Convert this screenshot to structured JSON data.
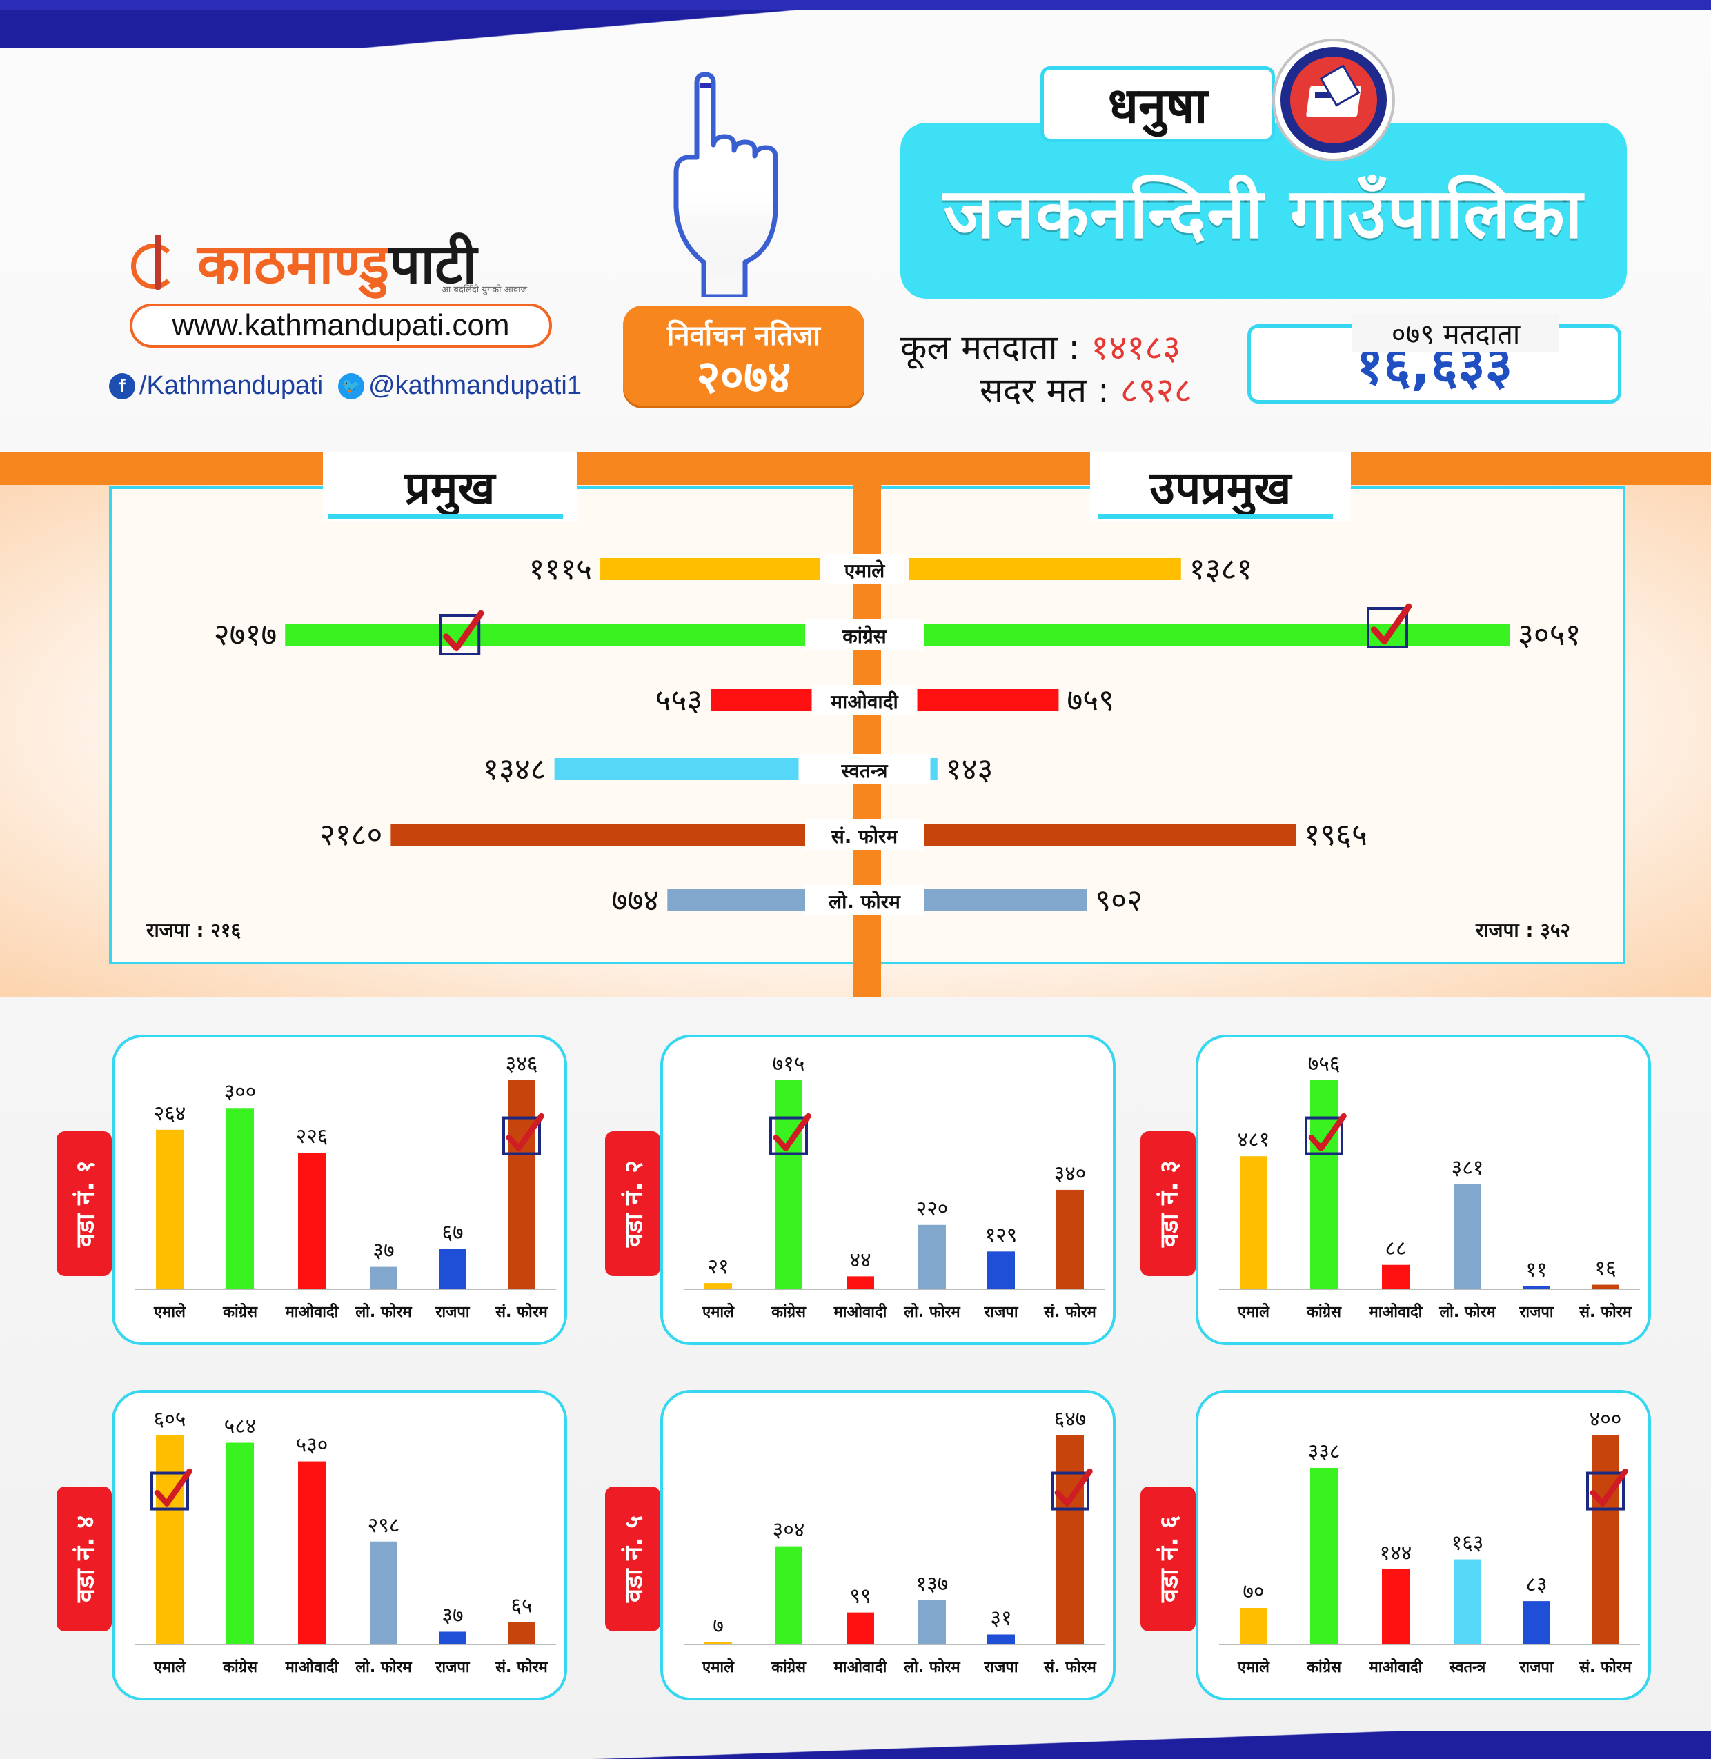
{
  "header": {
    "logo_part1": "काठमाण्डु",
    "logo_part2": "पाटी",
    "logo_tagline": "आ बदलिँदो युगको आवाज",
    "website": "www.kathmandupati.com",
    "facebook": "/Kathmandupati",
    "twitter": "@kathmandupati1",
    "election_title": "निर्वाचन नतिजा",
    "election_year": "२०७४",
    "district": "धनुषा",
    "municipality": "जनकनन्दिनी गाउँपालिका",
    "voters_079_label": "०७९ मतदाता",
    "voters_079_value": "१६,६३३",
    "total_voters_label": "कूल मतदाता :",
    "total_voters_value": "१४१८३",
    "valid_votes_label": "सदर मत :",
    "valid_votes_value": "८९२८"
  },
  "colors": {
    "एमाले": "#ffbf00",
    "कांग्रेस": "#39f21f",
    "माओवादी": "#ff1111",
    "स्वतन्त्र": "#55d7f7",
    "सं. फोरम": "#c8440d",
    "लो. फोरम": "#81a8cc",
    "राजपा": "#1f4fd6"
  },
  "chart_data": [
    {
      "type": "bar",
      "orientation": "horizontal-mirrored",
      "left_title": "प्रमुख",
      "right_title": "उपप्रमुख",
      "categories": [
        "एमाले",
        "कांग्रेस",
        "माओवादी",
        "स्वतन्त्र",
        "सं. फोरम",
        "लो. फोरम"
      ],
      "series": [
        {
          "name": "प्रमुख",
          "values": [
            1115,
            2717,
            553,
            1348,
            2180,
            774
          ],
          "labels": [
            "१११५",
            "२७१७",
            "५५३",
            "१३४८",
            "२१८०",
            "७७४"
          ],
          "winner": "कांग्रेस"
        },
        {
          "name": "उपप्रमुख",
          "values": [
            1381,
            3051,
            759,
            143,
            1965,
            902
          ],
          "labels": [
            "१३८१",
            "३०५१",
            "७५९",
            "१४३",
            "१९६५",
            "९०२"
          ],
          "winner": "कांग्रेस"
        }
      ],
      "notes_left": "राजपा : २१६",
      "notes_right": "राजपा : ३५२"
    },
    {
      "type": "bar",
      "title": "वडा नं. १",
      "categories": [
        "एमाले",
        "कांग्रेस",
        "माओवादी",
        "लो. फोरम",
        "राजपा",
        "सं. फोरम"
      ],
      "values": [
        264,
        300,
        226,
        37,
        67,
        346
      ],
      "labels": [
        "२६४",
        "३००",
        "२२६",
        "३७",
        "६७",
        "३४६"
      ],
      "winner": "सं. फोरम"
    },
    {
      "type": "bar",
      "title": "वडा नं. २",
      "categories": [
        "एमाले",
        "कांग्रेस",
        "माओवादी",
        "लो. फोरम",
        "राजपा",
        "सं. फोरम"
      ],
      "values": [
        21,
        715,
        44,
        220,
        129,
        340
      ],
      "labels": [
        "२१",
        "७१५",
        "४४",
        "२२०",
        "१२९",
        "३४०"
      ],
      "winner": "कांग्रेस"
    },
    {
      "type": "bar",
      "title": "वडा नं. ३",
      "categories": [
        "एमाले",
        "कांग्रेस",
        "माओवादी",
        "लो. फोरम",
        "राजपा",
        "सं. फोरम"
      ],
      "values": [
        481,
        756,
        88,
        381,
        11,
        16
      ],
      "labels": [
        "४८१",
        "७५६",
        "८८",
        "३८१",
        "११",
        "१६"
      ],
      "winner": "कांग्रेस"
    },
    {
      "type": "bar",
      "title": "वडा नं. ४",
      "categories": [
        "एमाले",
        "कांग्रेस",
        "माओवादी",
        "लो. फोरम",
        "राजपा",
        "सं. फोरम"
      ],
      "values": [
        605,
        584,
        530,
        298,
        37,
        65
      ],
      "labels": [
        "६०५",
        "५८४",
        "५३०",
        "२९८",
        "३७",
        "६५"
      ],
      "winner": "एमाले"
    },
    {
      "type": "bar",
      "title": "वडा नं. ५",
      "categories": [
        "एमाले",
        "कांग्रेस",
        "माओवादी",
        "लो. फोरम",
        "राजपा",
        "सं. फोरम"
      ],
      "values": [
        7,
        304,
        99,
        137,
        31,
        647
      ],
      "labels": [
        "७",
        "३०४",
        "९९",
        "१३७",
        "३१",
        "६४७"
      ],
      "winner": "सं. फोरम"
    },
    {
      "type": "bar",
      "title": "वडा नं. ६",
      "categories": [
        "एमाले",
        "कांग्रेस",
        "माओवादी",
        "स्वतन्त्र",
        "राजपा",
        "सं. फोरम"
      ],
      "values": [
        70,
        338,
        144,
        163,
        83,
        400
      ],
      "labels": [
        "७०",
        "३३८",
        "१४४",
        "१६३",
        "८३",
        "४००"
      ],
      "winner": "सं. फोरम"
    }
  ]
}
